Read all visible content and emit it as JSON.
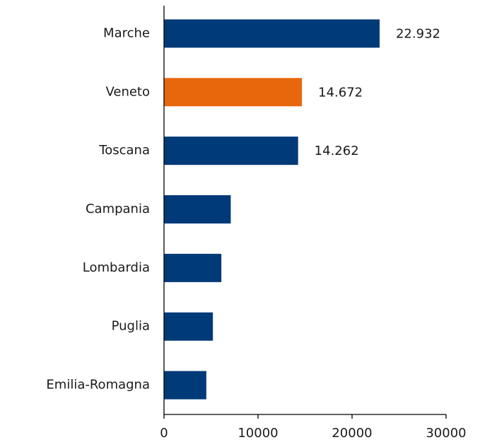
{
  "chart_data": {
    "type": "barh",
    "categories": [
      "Marche",
      "Veneto",
      "Toscana",
      "Campania",
      "Lombardia",
      "Puglia",
      "Emilia-Romagna"
    ],
    "values": [
      22932,
      14672,
      14262,
      7100,
      6100,
      5200,
      4500
    ],
    "value_labels": [
      "22.932",
      "14.672",
      "14.262",
      null,
      null,
      null,
      null
    ],
    "colors": [
      "#003a78",
      "#e8670c",
      "#003a78",
      "#003a78",
      "#003a78",
      "#003a78",
      "#003a78"
    ],
    "xlim": [
      0,
      30000
    ],
    "xticks": [
      0,
      10000,
      20000,
      30000
    ],
    "grid": false
  }
}
